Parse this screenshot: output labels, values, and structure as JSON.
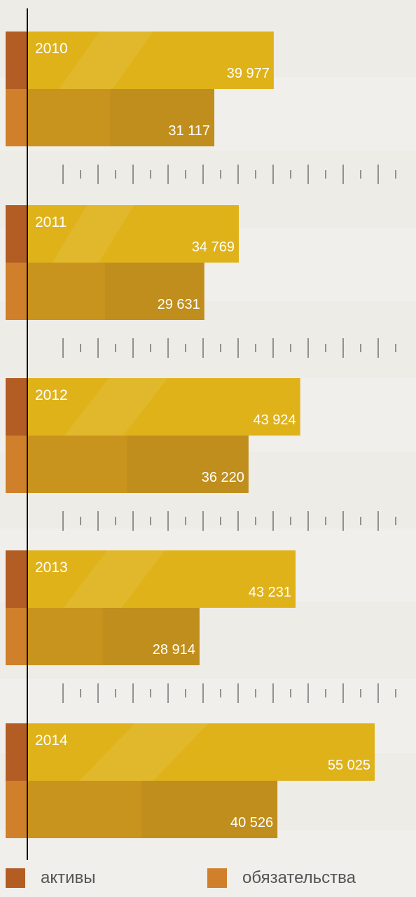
{
  "chart_data": {
    "type": "bar",
    "orientation": "horizontal",
    "categories": [
      "2010",
      "2011",
      "2012",
      "2013",
      "2014"
    ],
    "series": [
      {
        "name": "активы",
        "values": [
          39977,
          34769,
          43924,
          43231,
          55025
        ]
      },
      {
        "name": "обязательства",
        "values": [
          31117,
          29631,
          36220,
          28914,
          40526
        ]
      }
    ],
    "value_labels": [
      [
        "39 977",
        "31 117"
      ],
      [
        "34 769",
        "29 631"
      ],
      [
        "43 924",
        "36 220"
      ],
      [
        "43 231",
        "28 914"
      ],
      [
        "55 025",
        "40 526"
      ]
    ],
    "title": "",
    "xlabel": "",
    "ylabel": "",
    "xlim": [
      0,
      58000
    ],
    "grid": false,
    "legend_position": "bottom",
    "colors": {
      "series_1": "#dfb21a",
      "series_2": "#c8941e",
      "series_1_accent": "#b35c24",
      "series_2_accent": "#d0802b",
      "axis": "#111111",
      "ticks": "#555555",
      "label_text": "#ffffff"
    }
  },
  "legend": {
    "items": [
      {
        "label": "активы",
        "color": "#b35c24"
      },
      {
        "label": "обязательства",
        "color": "#d0802b"
      }
    ]
  }
}
